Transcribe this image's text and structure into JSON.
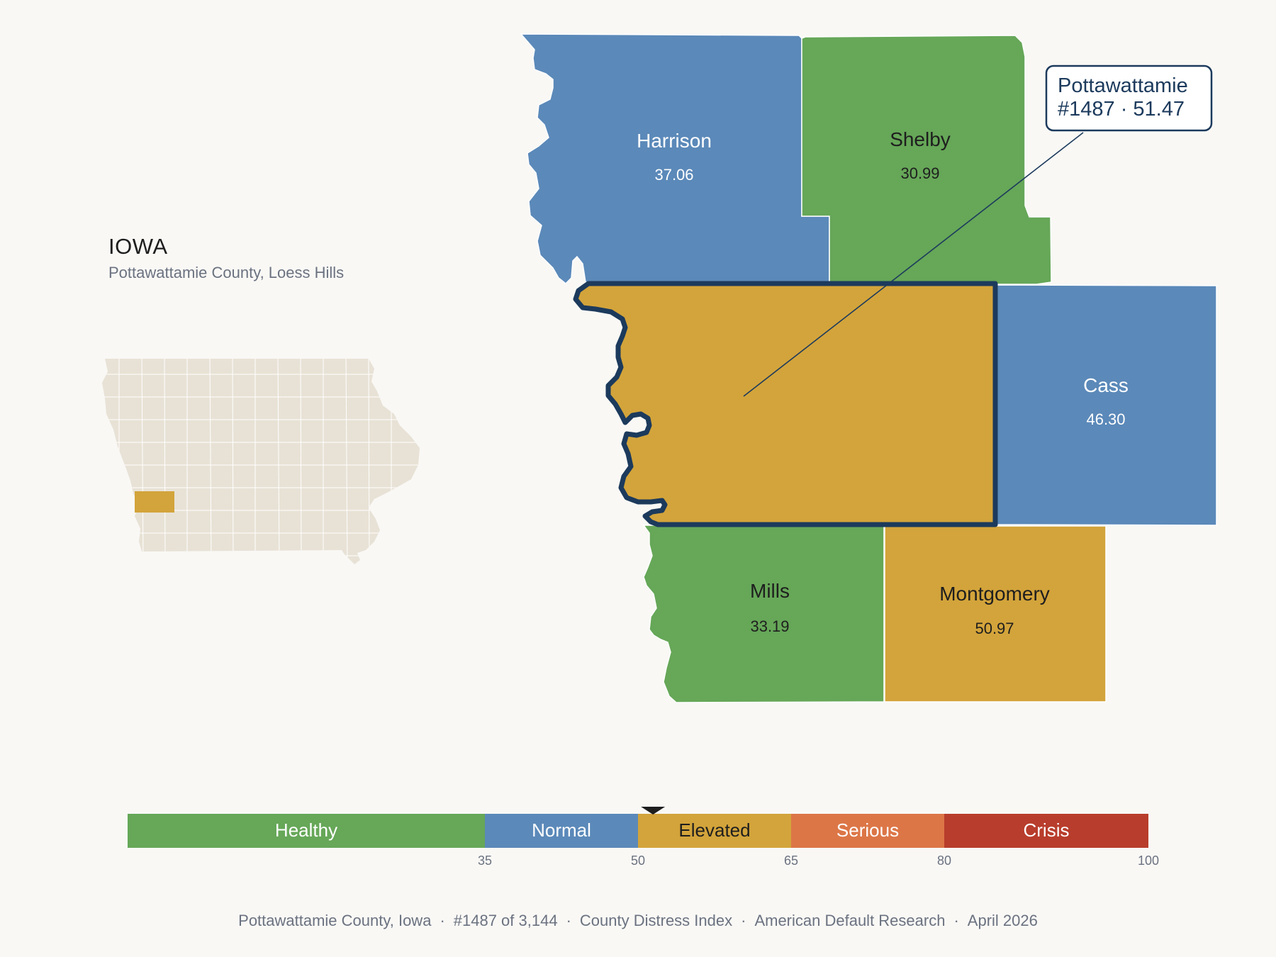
{
  "state": {
    "name": "IOWA",
    "subtitle": "Pottawattamie County, Loess Hills"
  },
  "colors": {
    "healthy": "#66a758",
    "normal": "#5b89b9",
    "elevated": "#d3a43b",
    "serious": "#dc7647",
    "crisis": "#b83d2c",
    "outline": "#1c3a5c",
    "inset_fill": "#e8e2d6",
    "background": "#f9f8f5"
  },
  "counties": [
    {
      "name": "Harrison",
      "value": "37.06",
      "category": "normal"
    },
    {
      "name": "Shelby",
      "value": "30.99",
      "category": "healthy"
    },
    {
      "name": "Cass",
      "value": "46.30",
      "category": "normal"
    },
    {
      "name": "Mills",
      "value": "33.19",
      "category": "healthy"
    },
    {
      "name": "Montgomery",
      "value": "50.97",
      "category": "elevated"
    },
    {
      "name": "Pottawattamie",
      "value": "51.47",
      "category": "elevated",
      "highlighted": true
    }
  ],
  "callout": {
    "line1": "Pottawattamie",
    "line2": "#1487 · 51.47"
  },
  "scale": {
    "segments": [
      {
        "label": "Healthy",
        "from": 0,
        "to": 35,
        "category": "healthy"
      },
      {
        "label": "Normal",
        "from": 35,
        "to": 50,
        "category": "normal"
      },
      {
        "label": "Elevated",
        "from": 50,
        "to": 65,
        "category": "elevated"
      },
      {
        "label": "Serious",
        "from": 65,
        "to": 80,
        "category": "serious"
      },
      {
        "label": "Crisis",
        "from": 80,
        "to": 100,
        "category": "crisis"
      }
    ],
    "ticks": [
      "35",
      "50",
      "65",
      "80",
      "100"
    ],
    "marker_value": 51.47
  },
  "footer": {
    "county": "Pottawattamie County, Iowa",
    "rank": "#1487 of 3,144",
    "index": "County Distress Index",
    "source": "American Default Research",
    "date": "April 2026"
  }
}
